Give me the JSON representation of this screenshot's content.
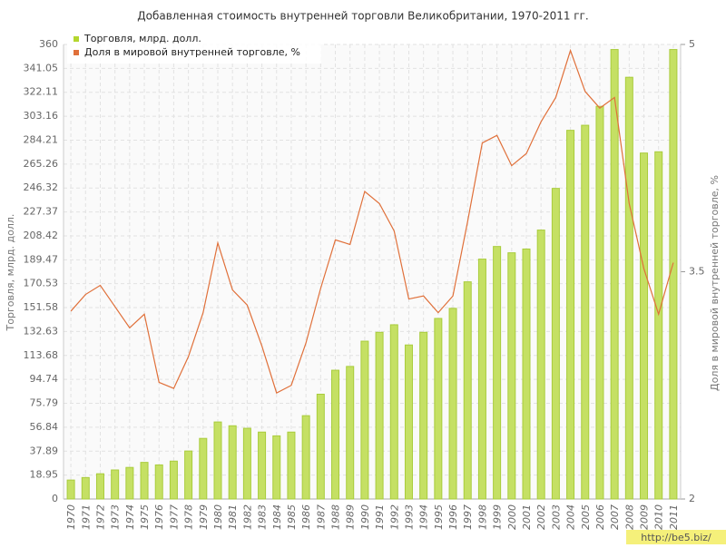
{
  "chart_data": {
    "type": "bar_line",
    "title": "Добавленная стоимость внутренней торговли Великобритании, 1970-2011 гг.",
    "y_label": "Торговля, млрд. долл.",
    "y2_label": "Доля в мировой внутренней торговле, %",
    "watermark": "http://be5.biz/",
    "categories": [
      "1970",
      "1971",
      "1972",
      "1973",
      "1974",
      "1975",
      "1976",
      "1977",
      "1978",
      "1979",
      "1980",
      "1981",
      "1982",
      "1983",
      "1984",
      "1985",
      "1986",
      "1987",
      "1988",
      "1989",
      "1990",
      "1991",
      "1992",
      "1993",
      "1994",
      "1995",
      "1996",
      "1997",
      "1998",
      "1999",
      "2000",
      "2001",
      "2002",
      "2003",
      "2004",
      "2005",
      "2006",
      "2007",
      "2008",
      "2009",
      "2010",
      "2011"
    ],
    "series": [
      {
        "name": "Торговля, млрд. долл.",
        "color": "#c5e064",
        "type": "bar",
        "axis": "y",
        "values": [
          15,
          17,
          20,
          23,
          25,
          29,
          27,
          30,
          38,
          48,
          61,
          58,
          56,
          53,
          50,
          53,
          66,
          83,
          102,
          105,
          125,
          132,
          138,
          122,
          132,
          143,
          151,
          172,
          190,
          200,
          195,
          198,
          213,
          246,
          292,
          296,
          311,
          356,
          334,
          274,
          275,
          356
        ]
      },
      {
        "name": "Доля в мировой внутренней торговле, %",
        "color": "#e0703a",
        "type": "line",
        "axis": "y2",
        "values": [
          3.24,
          3.35,
          3.41,
          3.27,
          3.13,
          3.22,
          2.77,
          2.73,
          2.94,
          3.23,
          3.69,
          3.38,
          3.28,
          3.01,
          2.7,
          2.75,
          3.03,
          3.39,
          3.71,
          3.68,
          4.03,
          3.95,
          3.77,
          3.32,
          3.34,
          3.23,
          3.34,
          3.83,
          4.35,
          4.4,
          4.2,
          4.28,
          4.49,
          4.65,
          4.96,
          4.69,
          4.58,
          4.65,
          3.95,
          3.52,
          3.22,
          3.56
        ]
      }
    ],
    "ylim": [
      0,
      360
    ],
    "yticks": [
      0,
      18.95,
      37.89,
      56.84,
      75.79,
      94.74,
      113.68,
      132.63,
      151.58,
      170.53,
      189.47,
      208.42,
      227.37,
      246.32,
      265.26,
      284.21,
      303.16,
      322.11,
      341.05,
      360
    ],
    "y2lim": [
      2,
      5
    ],
    "y2ticks": [
      2,
      3.5,
      5
    ],
    "grid": true,
    "legend": "top-left"
  }
}
